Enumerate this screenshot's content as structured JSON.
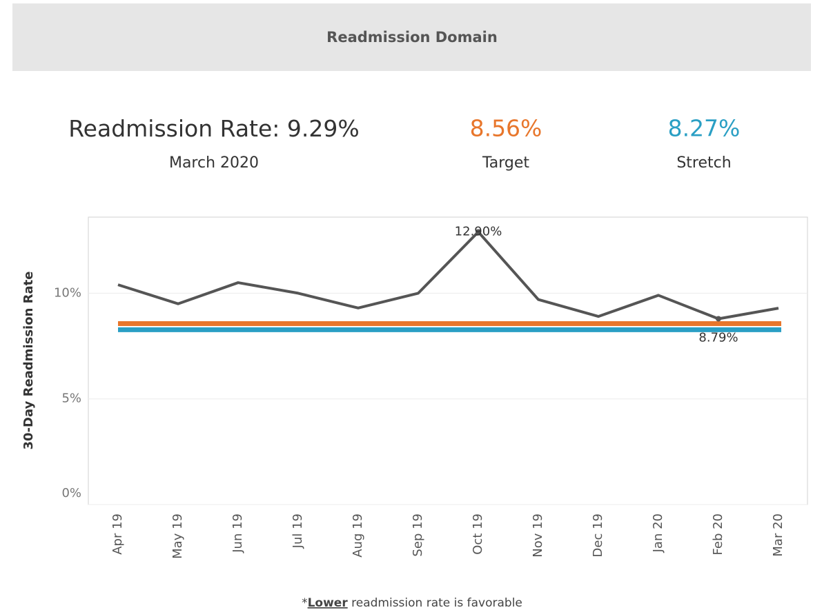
{
  "header": {
    "title": "Readmission Domain"
  },
  "kpis": {
    "current": {
      "label": "Readmission Rate:",
      "value": "9.29%",
      "period": "March 2020"
    }
  },
  "chart_data": {
    "type": "line",
    "y_label": "30-Day Readmission Rate",
    "categories": [
      "Apr 19",
      "May 19",
      "Jun 19",
      "Jul 19",
      "Aug 19",
      "Sep 19",
      "Oct 19",
      "Nov 19",
      "Dec 19",
      "Jan 20",
      "Feb 20",
      "Mar 20"
    ],
    "series": [
      {
        "name": "Readmission Rate",
        "color": "#555555",
        "values": [
          10.4,
          9.5,
          10.5,
          10.0,
          9.3,
          10.0,
          12.9,
          9.7,
          8.9,
          9.9,
          8.79,
          9.29
        ],
        "value_labels": [
          null,
          null,
          null,
          null,
          null,
          null,
          "12.90%",
          null,
          null,
          null,
          "8.79%",
          null
        ]
      }
    ],
    "reference_lines": [
      {
        "name": "Target",
        "value": 8.56,
        "label": "8.56%",
        "color": "#e8762b"
      },
      {
        "name": "Stretch",
        "value": 8.27,
        "label": "8.27%",
        "color": "#2a9fc4"
      }
    ],
    "ylim": [
      0,
      13.6
    ],
    "yticks": [
      {
        "value": 0,
        "label": "0%"
      },
      {
        "value": 5,
        "label": "5%"
      },
      {
        "value": 10,
        "label": "10%"
      }
    ],
    "grid": true
  },
  "footnote": {
    "prefix": "*",
    "emphasis": "Lower",
    "text": " readmission rate is favorable"
  }
}
